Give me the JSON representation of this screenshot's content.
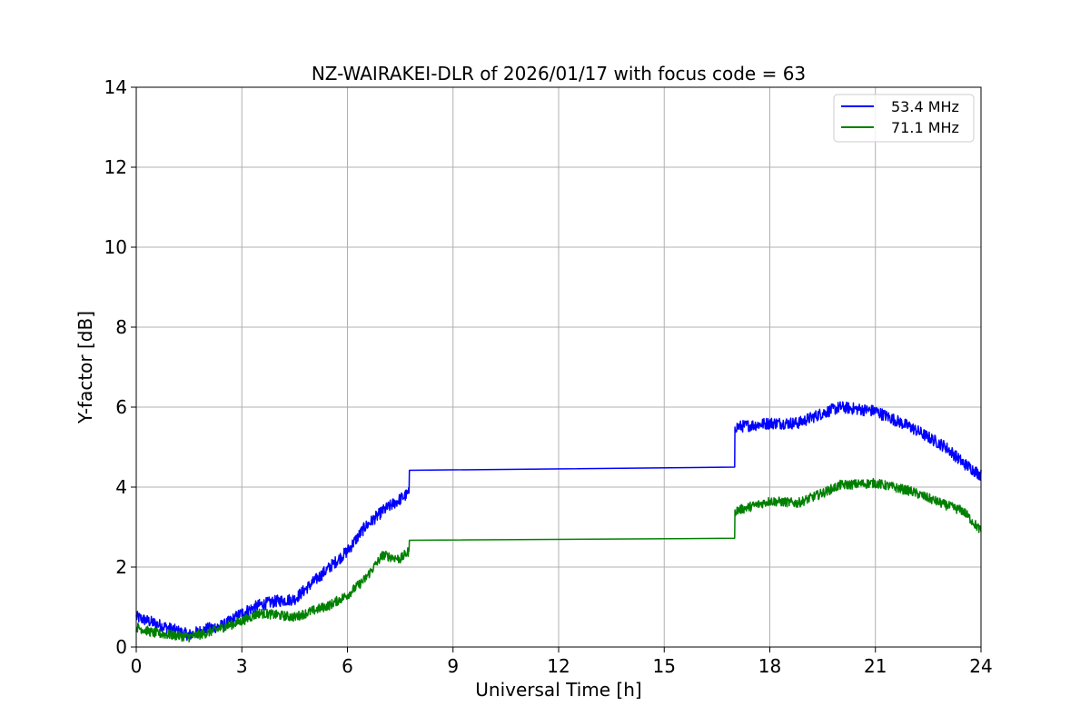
{
  "chart_data": {
    "type": "line",
    "title": "NZ-WAIRAKEI-DLR of 2026/01/17 with focus code = 63",
    "xlabel": "Universal Time [h]",
    "ylabel": "Y-factor [dB]",
    "xlim": [
      0,
      24
    ],
    "ylim": [
      0,
      14
    ],
    "xticks": [
      0,
      3,
      6,
      9,
      12,
      15,
      18,
      21,
      24
    ],
    "yticks": [
      0,
      2,
      4,
      6,
      8,
      10,
      12,
      14
    ],
    "grid": true,
    "legend_position": "top-right",
    "series": [
      {
        "name": "53.4 MHz",
        "color": "#0000ff",
        "noise": 0.15,
        "points": [
          [
            0,
            0.75
          ],
          [
            0.5,
            0.6
          ],
          [
            1.0,
            0.45
          ],
          [
            1.5,
            0.3
          ],
          [
            2.0,
            0.45
          ],
          [
            2.5,
            0.55
          ],
          [
            3.0,
            0.85
          ],
          [
            3.5,
            1.05
          ],
          [
            4.0,
            1.15
          ],
          [
            4.5,
            1.2
          ],
          [
            5.0,
            1.6
          ],
          [
            5.5,
            2.0
          ],
          [
            6.0,
            2.4
          ],
          [
            6.5,
            3.0
          ],
          [
            7.0,
            3.4
          ],
          [
            7.5,
            3.7
          ],
          [
            7.75,
            3.85
          ],
          [
            7.76,
            4.42
          ],
          [
            17.0,
            4.5
          ],
          [
            17.01,
            5.5
          ],
          [
            18.0,
            5.6
          ],
          [
            18.8,
            5.6
          ],
          [
            19.5,
            5.85
          ],
          [
            20.0,
            6.0
          ],
          [
            21.0,
            5.9
          ],
          [
            22.0,
            5.5
          ],
          [
            23.0,
            5.0
          ],
          [
            23.5,
            4.6
          ],
          [
            24.0,
            4.3
          ]
        ]
      },
      {
        "name": "71.1 MHz",
        "color": "#008000",
        "noise": 0.12,
        "points": [
          [
            0,
            0.5
          ],
          [
            0.5,
            0.35
          ],
          [
            1.0,
            0.3
          ],
          [
            1.5,
            0.25
          ],
          [
            2.0,
            0.35
          ],
          [
            2.5,
            0.5
          ],
          [
            3.0,
            0.65
          ],
          [
            3.5,
            0.85
          ],
          [
            4.0,
            0.8
          ],
          [
            4.5,
            0.75
          ],
          [
            5.0,
            0.9
          ],
          [
            5.5,
            1.05
          ],
          [
            6.0,
            1.3
          ],
          [
            6.5,
            1.7
          ],
          [
            7.0,
            2.3
          ],
          [
            7.5,
            2.2
          ],
          [
            7.75,
            2.4
          ],
          [
            7.76,
            2.67
          ],
          [
            17.0,
            2.72
          ],
          [
            17.01,
            3.4
          ],
          [
            18.0,
            3.65
          ],
          [
            18.8,
            3.6
          ],
          [
            19.5,
            3.85
          ],
          [
            20.0,
            4.05
          ],
          [
            21.0,
            4.1
          ],
          [
            22.0,
            3.9
          ],
          [
            23.0,
            3.55
          ],
          [
            23.5,
            3.4
          ],
          [
            24.0,
            2.9
          ]
        ]
      }
    ]
  }
}
